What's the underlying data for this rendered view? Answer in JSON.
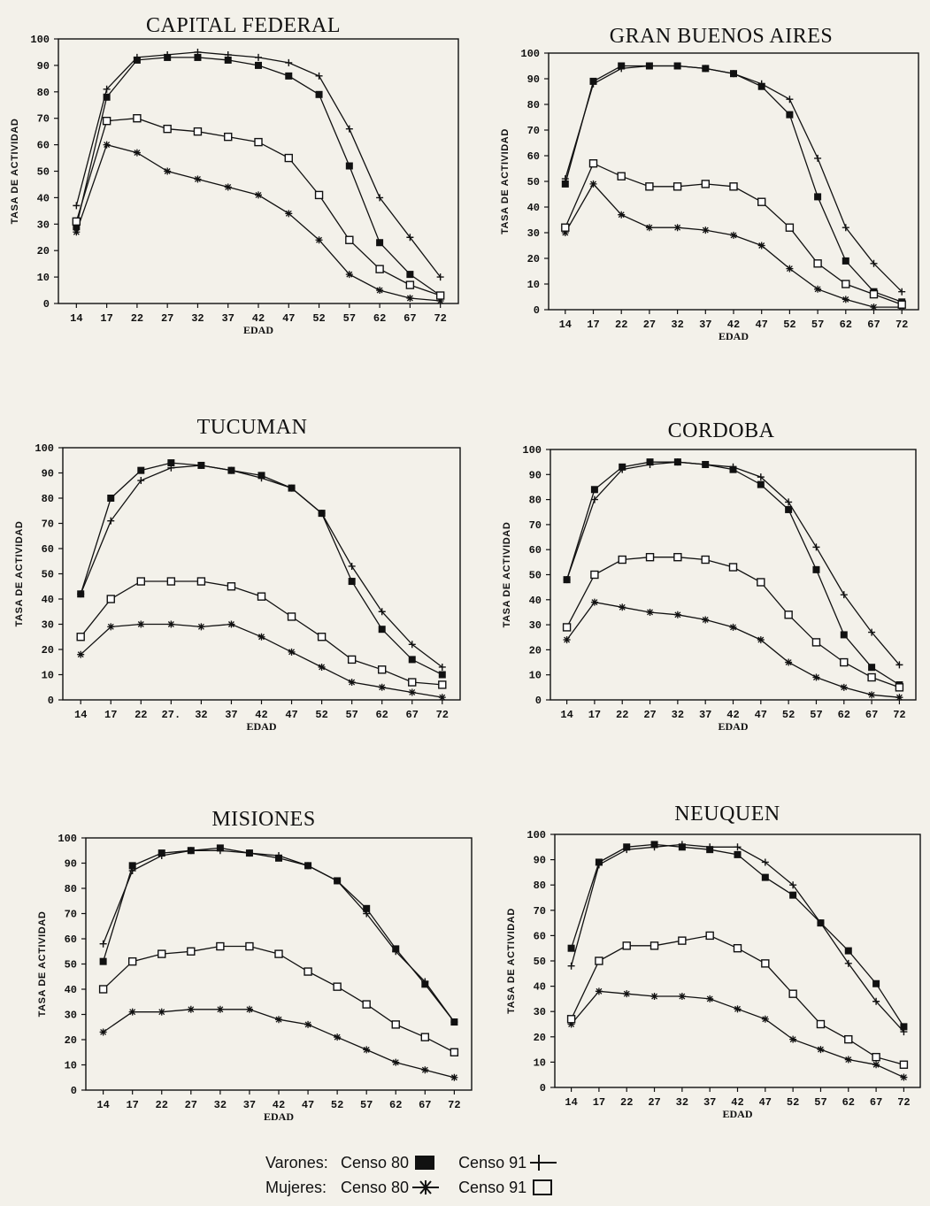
{
  "legend": {
    "varones_label": "Varones:",
    "mujeres_label": "Mujeres:",
    "censo80": "Censo 80",
    "censo91": "Censo 91"
  },
  "chart_data": [
    {
      "type": "line",
      "title": "CAPITAL FEDERAL",
      "xlabel": "EDAD",
      "ylabel": "TASA DE ACTIVIDAD",
      "ylim": [
        0,
        100
      ],
      "categories": [
        "14",
        "17",
        "22",
        "27",
        "32",
        "37",
        "42",
        "47",
        "52",
        "57",
        "62",
        "67",
        "72"
      ],
      "yticks": [
        0,
        10,
        20,
        30,
        40,
        50,
        60,
        70,
        80,
        90,
        100
      ],
      "series": [
        {
          "key": "v80",
          "values": [
            29,
            78,
            92,
            93,
            93,
            92,
            90,
            86,
            79,
            52,
            23,
            11,
            3
          ]
        },
        {
          "key": "v91",
          "values": [
            37,
            81,
            93,
            94,
            95,
            94,
            93,
            91,
            86,
            66,
            40,
            25,
            10
          ]
        },
        {
          "key": "m80",
          "values": [
            27,
            60,
            57,
            50,
            47,
            44,
            41,
            34,
            24,
            11,
            5,
            2,
            1
          ]
        },
        {
          "key": "m91",
          "values": [
            31,
            69,
            70,
            66,
            65,
            63,
            61,
            55,
            41,
            24,
            13,
            7,
            3
          ]
        }
      ]
    },
    {
      "type": "line",
      "title": "GRAN BUENOS AIRES",
      "xlabel": "EDAD",
      "ylabel": "TASA DE ACTIVIDAD",
      "ylim": [
        0,
        100
      ],
      "categories": [
        "14",
        "17",
        "22",
        "27",
        "32",
        "37",
        "42",
        "47",
        "52",
        "57",
        "62",
        "67",
        "72"
      ],
      "yticks": [
        0,
        10,
        20,
        30,
        40,
        50,
        60,
        70,
        80,
        90,
        100
      ],
      "series": [
        {
          "key": "v80",
          "values": [
            49,
            89,
            95,
            95,
            95,
            94,
            92,
            87,
            76,
            44,
            19,
            7,
            3
          ]
        },
        {
          "key": "v91",
          "values": [
            51,
            88,
            94,
            95,
            95,
            94,
            92,
            88,
            82,
            59,
            32,
            18,
            7
          ]
        },
        {
          "key": "m80",
          "values": [
            30,
            49,
            37,
            32,
            32,
            31,
            29,
            25,
            16,
            8,
            4,
            1,
            1
          ]
        },
        {
          "key": "m91",
          "values": [
            32,
            57,
            52,
            48,
            48,
            49,
            48,
            42,
            32,
            18,
            10,
            6,
            2
          ]
        }
      ]
    },
    {
      "type": "line",
      "title": "TUCUMAN",
      "xlabel": "EDAD",
      "ylabel": "TASA DE ACTIVIDAD",
      "ylim": [
        0,
        100
      ],
      "categories": [
        "14",
        "17",
        "22",
        "27.",
        "32",
        "37",
        "42",
        "47",
        "52",
        "57",
        "62",
        "67",
        "72"
      ],
      "yticks": [
        0,
        10,
        20,
        30,
        40,
        50,
        60,
        70,
        80,
        90,
        100
      ],
      "series": [
        {
          "key": "v80",
          "values": [
            42,
            80,
            91,
            94,
            93,
            91,
            89,
            84,
            74,
            47,
            28,
            16,
            10
          ]
        },
        {
          "key": "v91",
          "values": [
            42,
            71,
            87,
            92,
            93,
            91,
            88,
            84,
            74,
            53,
            35,
            22,
            13
          ]
        },
        {
          "key": "m80",
          "values": [
            18,
            29,
            30,
            30,
            29,
            30,
            25,
            19,
            13,
            7,
            5,
            3,
            1
          ]
        },
        {
          "key": "m91",
          "values": [
            25,
            40,
            47,
            47,
            47,
            45,
            41,
            33,
            25,
            16,
            12,
            7,
            6
          ]
        }
      ]
    },
    {
      "type": "line",
      "title": "CORDOBA",
      "xlabel": "EDAD",
      "ylabel": "TASA DE ACTIVIDAD",
      "ylim": [
        0,
        100
      ],
      "categories": [
        "14",
        "17",
        "22",
        "27",
        "32",
        "37",
        "42",
        "47",
        "52",
        "57",
        "62",
        "67",
        "72"
      ],
      "yticks": [
        0,
        10,
        20,
        30,
        40,
        50,
        60,
        70,
        80,
        90,
        100
      ],
      "series": [
        {
          "key": "v80",
          "values": [
            48,
            84,
            93,
            95,
            95,
            94,
            92,
            86,
            76,
            52,
            26,
            13,
            6
          ]
        },
        {
          "key": "v91",
          "values": [
            48,
            80,
            92,
            94,
            95,
            94,
            93,
            89,
            79,
            61,
            42,
            27,
            14
          ]
        },
        {
          "key": "m80",
          "values": [
            24,
            39,
            37,
            35,
            34,
            32,
            29,
            24,
            15,
            9,
            5,
            2,
            1
          ]
        },
        {
          "key": "m91",
          "values": [
            29,
            50,
            56,
            57,
            57,
            56,
            53,
            47,
            34,
            23,
            15,
            9,
            5
          ]
        }
      ]
    },
    {
      "type": "line",
      "title": "MISIONES",
      "xlabel": "EDAD",
      "ylabel": "TASA DE ACTIVIDAD",
      "ylim": [
        0,
        100
      ],
      "categories": [
        "14",
        "17",
        "22",
        "27",
        "32",
        "37",
        "42",
        "47",
        "52",
        "57",
        "62",
        "67",
        "72"
      ],
      "yticks": [
        0,
        10,
        20,
        30,
        40,
        50,
        60,
        70,
        80,
        90,
        100
      ],
      "series": [
        {
          "key": "v80",
          "values": [
            51,
            89,
            94,
            95,
            96,
            94,
            92,
            89,
            83,
            72,
            56,
            42,
            27
          ]
        },
        {
          "key": "v91",
          "values": [
            58,
            87,
            93,
            95,
            95,
            94,
            93,
            89,
            83,
            70,
            55,
            43,
            27
          ]
        },
        {
          "key": "m80",
          "values": [
            23,
            31,
            31,
            32,
            32,
            32,
            28,
            26,
            21,
            16,
            11,
            8,
            5
          ]
        },
        {
          "key": "m91",
          "values": [
            40,
            51,
            54,
            55,
            57,
            57,
            54,
            47,
            41,
            34,
            26,
            21,
            15
          ]
        }
      ]
    },
    {
      "type": "line",
      "title": "NEUQUEN",
      "xlabel": "EDAD",
      "ylabel": "TASA DE ACTIVIDAD",
      "ylim": [
        0,
        100
      ],
      "categories": [
        "14",
        "17",
        "22",
        "27",
        "32",
        "37",
        "42",
        "47",
        "52",
        "57",
        "62",
        "67",
        "72"
      ],
      "yticks": [
        0,
        10,
        20,
        30,
        40,
        50,
        60,
        70,
        80,
        90,
        100
      ],
      "series": [
        {
          "key": "v80",
          "values": [
            55,
            89,
            95,
            96,
            95,
            94,
            92,
            83,
            76,
            65,
            54,
            41,
            24
          ]
        },
        {
          "key": "v91",
          "values": [
            48,
            88,
            94,
            95,
            96,
            95,
            95,
            89,
            80,
            65,
            49,
            34,
            22
          ]
        },
        {
          "key": "m80",
          "values": [
            25,
            38,
            37,
            36,
            36,
            35,
            31,
            27,
            19,
            15,
            11,
            9,
            4
          ]
        },
        {
          "key": "m91",
          "values": [
            27,
            50,
            56,
            56,
            58,
            60,
            55,
            49,
            37,
            25,
            19,
            12,
            9
          ]
        }
      ]
    }
  ]
}
